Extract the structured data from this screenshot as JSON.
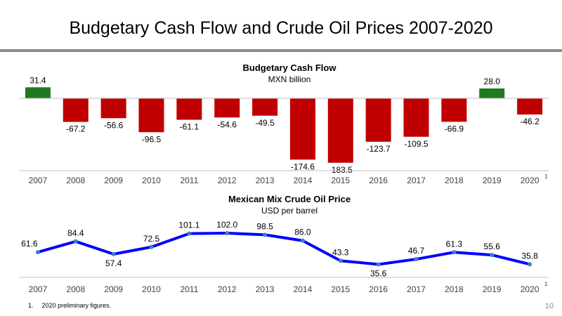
{
  "header": {
    "title": "Budgetary Cash Flow and Crude Oil Prices 2007-2020"
  },
  "colors": {
    "positive": "#1f7a1f",
    "negative": "#c00000",
    "line": "#0000ff",
    "marker": "#3f7fbf",
    "axis": "#bfbfbf",
    "rule": "#8c8c8c"
  },
  "chart_data": [
    {
      "type": "bar",
      "title": "Budgetary Cash Flow",
      "subtitle": "MXN billion",
      "categories": [
        "2007",
        "2008",
        "2009",
        "2010",
        "2011",
        "2012",
        "2013",
        "2014",
        "2015",
        "2016",
        "2017",
        "2018",
        "2019",
        "2020"
      ],
      "category_note": {
        "category": "2020",
        "marker": "1"
      },
      "values": [
        31.4,
        -67.2,
        -56.6,
        -96.5,
        -61.1,
        -54.6,
        -49.5,
        -174.6,
        -183.5,
        -123.7,
        -109.5,
        -66.9,
        28.0,
        -46.2
      ],
      "value_labels": [
        "31.4",
        "-67.2",
        "-56.6",
        "-96.5",
        "-61.1",
        "-54.6",
        "-49.5",
        "-174.6",
        "-183.5",
        "-123.7",
        "-109.5",
        "-66.9",
        "28.0",
        "-46.2"
      ],
      "grid": false
    },
    {
      "type": "line",
      "title": "Mexican Mix Crude Oil Price",
      "subtitle": "USD per barrel",
      "categories": [
        "2007",
        "2008",
        "2009",
        "2010",
        "2011",
        "2012",
        "2013",
        "2014",
        "2015",
        "2016",
        "2017",
        "2018",
        "2019",
        "2020"
      ],
      "category_note": {
        "category": "2020",
        "marker": "1"
      },
      "values": [
        61.6,
        84.4,
        57.4,
        72.5,
        101.1,
        102.0,
        98.5,
        86.0,
        43.3,
        35.6,
        46.7,
        61.3,
        55.6,
        35.8
      ],
      "value_labels": [
        "61.6",
        "84.4",
        "57.4",
        "72.5",
        "101.1",
        "102.0",
        "98.5",
        "86.0",
        "43.3",
        "35.6",
        "46.7",
        "61.3",
        "55.6",
        "35.8"
      ],
      "grid": false
    }
  ],
  "footnote": {
    "number": "1.",
    "text": "2020 preliminary figures."
  },
  "page_number": "10"
}
